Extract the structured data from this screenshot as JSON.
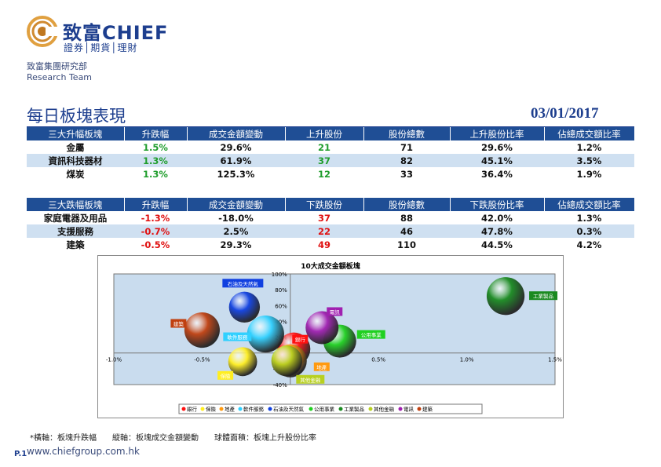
{
  "header": {
    "brand": "致富CHIEF",
    "brand_sub": "證券│期貨│理財",
    "dept_cn": "致富集團研究部",
    "dept_en": "Research Team"
  },
  "page": {
    "title": "每日板塊表現",
    "date": "03/01/2017",
    "footnote": "*橫軸：板塊升跌幅　　縱軸：板塊成交金額變動　　球體面積：板塊上升股份比率",
    "page_no": "P.1",
    "website": "www.chiefgroup.com.hk"
  },
  "colors": {
    "header_bg": "#1f4e95",
    "alt_row": "#cfe0f1",
    "up": "#1f9d2c",
    "down": "#e01010"
  },
  "top_table": {
    "headers": [
      "三大升幅板塊",
      "升跌幅",
      "成交金額變動",
      "上升股份",
      "股份總數",
      "上升股份比率",
      "佔總成交額比率"
    ],
    "rows": [
      [
        "金屬",
        "1.5%",
        "29.6%",
        "21",
        "71",
        "29.6%",
        "1.2%"
      ],
      [
        "資訊科技器材",
        "1.3%",
        "61.9%",
        "37",
        "82",
        "45.1%",
        "3.5%"
      ],
      [
        "煤炭",
        "1.3%",
        "125.3%",
        "12",
        "33",
        "36.4%",
        "1.9%"
      ]
    ]
  },
  "bottom_table": {
    "headers": [
      "三大跌幅板塊",
      "升跌幅",
      "成交金額變動",
      "下跌股份",
      "股份總數",
      "下跌股份比率",
      "佔總成交額比率"
    ],
    "rows": [
      [
        "家庭電器及用品",
        "-1.3%",
        "-18.0%",
        "37",
        "88",
        "42.0%",
        "1.3%"
      ],
      [
        "支援服務",
        "-0.7%",
        "2.5%",
        "22",
        "46",
        "47.8%",
        "0.3%"
      ],
      [
        "建築",
        "-0.5%",
        "29.3%",
        "49",
        "110",
        "44.5%",
        "4.2%"
      ]
    ]
  },
  "chart_data": {
    "type": "scatter",
    "title": "10大成交金額板塊",
    "xlim": [
      -1.0,
      1.5
    ],
    "ylim": [
      -40,
      100
    ],
    "x_ticks": [
      "-1.0%",
      "-0.5%",
      "0.0%",
      "0.5%",
      "1.0%",
      "1.5%"
    ],
    "y_ticks": [
      "-40%",
      "-20%",
      "0%",
      "20%",
      "40%",
      "60%",
      "80%",
      "100%"
    ],
    "series": [
      {
        "name": "銀行",
        "x": 0.02,
        "y": 5,
        "size": 0.5,
        "color": "#ff1010"
      },
      {
        "name": "保險",
        "x": -0.27,
        "y": -11,
        "size": 0.4,
        "color": "#ffee20"
      },
      {
        "name": "地產",
        "x": 0.0,
        "y": -10,
        "size": 0.5,
        "color": "#ff9a10"
      },
      {
        "name": "軟件服務",
        "x": -0.14,
        "y": 24,
        "size": 0.6,
        "color": "#30d0ff"
      },
      {
        "name": "石油及天然氣",
        "x": -0.26,
        "y": 58,
        "size": 0.45,
        "color": "#1040e0"
      },
      {
        "name": "公用事業",
        "x": 0.28,
        "y": 15,
        "size": 0.5,
        "color": "#20d020"
      },
      {
        "name": "工業製品",
        "x": 1.22,
        "y": 72,
        "size": 0.62,
        "color": "#1a8a20"
      },
      {
        "name": "其他金融",
        "x": -0.02,
        "y": -10,
        "size": 0.45,
        "color": "#b8d020"
      },
      {
        "name": "電訊",
        "x": 0.18,
        "y": 32,
        "size": 0.5,
        "color": "#a020b0"
      },
      {
        "name": "建築",
        "x": -0.5,
        "y": 29,
        "size": 0.56,
        "color": "#c04010"
      }
    ],
    "grid": false,
    "legend_position": "bottom"
  }
}
